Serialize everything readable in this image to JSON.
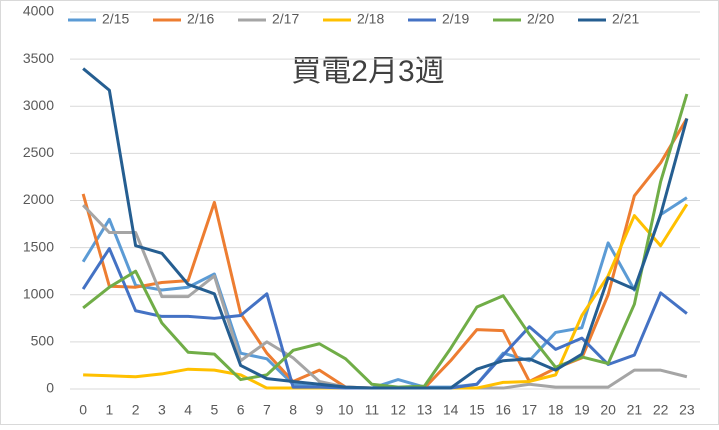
{
  "chart_data": {
    "type": "line",
    "title": "買電2月3週",
    "categories": [
      "0",
      "1",
      "2",
      "3",
      "4",
      "5",
      "6",
      "7",
      "8",
      "9",
      "10",
      "11",
      "12",
      "13",
      "14",
      "15",
      "16",
      "17",
      "18",
      "19",
      "20",
      "21",
      "22",
      "23"
    ],
    "ylim": [
      0,
      4000
    ],
    "yticks": [
      0,
      500,
      1000,
      1500,
      2000,
      2500,
      3000,
      3500,
      4000
    ],
    "grid": true,
    "legend": "top",
    "series": [
      {
        "name": "2/15",
        "color": "#5b9bd5",
        "values": [
          1350,
          1800,
          1100,
          1050,
          1080,
          1220,
          380,
          320,
          50,
          20,
          10,
          10,
          100,
          20,
          20,
          50,
          380,
          300,
          600,
          650,
          1550,
          1050,
          1850,
          2030
        ]
      },
      {
        "name": "2/16",
        "color": "#ed7d31",
        "values": [
          2070,
          1090,
          1080,
          1130,
          1150,
          1980,
          800,
          380,
          80,
          200,
          20,
          10,
          10,
          10,
          300,
          630,
          620,
          80,
          220,
          330,
          1000,
          2050,
          2400,
          2870
        ]
      },
      {
        "name": "2/17",
        "color": "#a5a5a5",
        "values": [
          1950,
          1660,
          1660,
          980,
          980,
          1200,
          300,
          500,
          330,
          80,
          20,
          10,
          10,
          10,
          10,
          10,
          10,
          50,
          20,
          20,
          20,
          200,
          200,
          130
        ]
      },
      {
        "name": "2/18",
        "color": "#ffc000",
        "values": [
          150,
          140,
          130,
          160,
          210,
          200,
          150,
          10,
          10,
          10,
          10,
          10,
          10,
          10,
          10,
          10,
          70,
          80,
          150,
          780,
          1200,
          1840,
          1520,
          1960
        ]
      },
      {
        "name": "2/19",
        "color": "#4472c4",
        "values": [
          1060,
          1490,
          830,
          770,
          770,
          750,
          780,
          1010,
          20,
          20,
          10,
          10,
          10,
          10,
          10,
          50,
          360,
          660,
          420,
          540,
          260,
          360,
          1020,
          800
        ]
      },
      {
        "name": "2/20",
        "color": "#70ad47",
        "values": [
          860,
          1080,
          1250,
          700,
          390,
          370,
          100,
          150,
          410,
          480,
          320,
          50,
          20,
          30,
          430,
          870,
          990,
          580,
          230,
          340,
          270,
          900,
          2200,
          3130
        ]
      },
      {
        "name": "2/21",
        "color": "#255e91",
        "values": [
          3400,
          3170,
          1520,
          1440,
          1110,
          1010,
          250,
          110,
          80,
          50,
          20,
          10,
          10,
          10,
          10,
          210,
          300,
          320,
          200,
          370,
          1180,
          1060,
          1850,
          2870
        ]
      }
    ]
  }
}
